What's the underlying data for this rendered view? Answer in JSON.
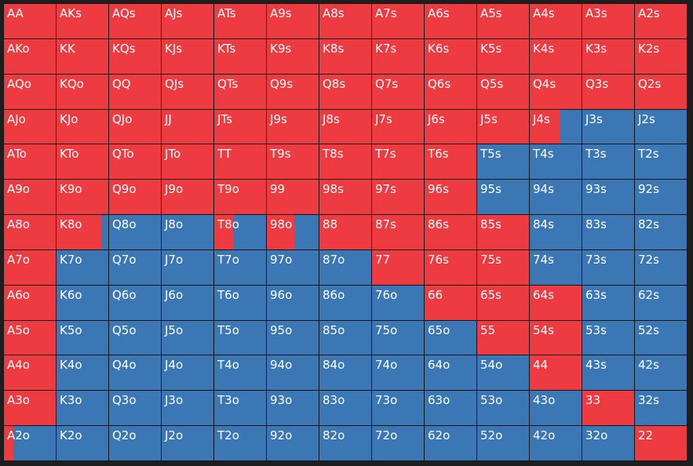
{
  "colors": {
    "raise": "#ee3b41",
    "fold": "#3a77b4",
    "border": "#141414"
  },
  "hands": [
    [
      "AA",
      "AKs",
      "AQs",
      "AJs",
      "ATs",
      "A9s",
      "A8s",
      "A7s",
      "A6s",
      "A5s",
      "A4s",
      "A3s",
      "A2s"
    ],
    [
      "AKo",
      "KK",
      "KQs",
      "KJs",
      "KTs",
      "K9s",
      "K8s",
      "K7s",
      "K6s",
      "K5s",
      "K4s",
      "K3s",
      "K2s"
    ],
    [
      "AQo",
      "KQo",
      "QQ",
      "QJs",
      "QTs",
      "Q9s",
      "Q8s",
      "Q7s",
      "Q6s",
      "Q5s",
      "Q4s",
      "Q3s",
      "Q2s"
    ],
    [
      "AJo",
      "KJo",
      "QJo",
      "JJ",
      "JTs",
      "J9s",
      "J8s",
      "J7s",
      "J6s",
      "J5s",
      "J4s",
      "J3s",
      "J2s"
    ],
    [
      "ATo",
      "KTo",
      "QTo",
      "JTo",
      "TT",
      "T9s",
      "T8s",
      "T7s",
      "T6s",
      "T5s",
      "T4s",
      "T3s",
      "T2s"
    ],
    [
      "A9o",
      "K9o",
      "Q9o",
      "J9o",
      "T9o",
      "99",
      "98s",
      "97s",
      "96s",
      "95s",
      "94s",
      "93s",
      "92s"
    ],
    [
      "A8o",
      "K8o",
      "Q8o",
      "J8o",
      "T8o",
      "98o",
      "88",
      "87s",
      "86s",
      "85s",
      "84s",
      "83s",
      "82s"
    ],
    [
      "A7o",
      "K7o",
      "Q7o",
      "J7o",
      "T7o",
      "97o",
      "87o",
      "77",
      "76s",
      "75s",
      "74s",
      "73s",
      "72s"
    ],
    [
      "A6o",
      "K6o",
      "Q6o",
      "J6o",
      "T6o",
      "96o",
      "86o",
      "76o",
      "66",
      "65s",
      "64s",
      "63s",
      "62s"
    ],
    [
      "A5o",
      "K5o",
      "Q5o",
      "J5o",
      "T5o",
      "95o",
      "85o",
      "75o",
      "65o",
      "55",
      "54s",
      "53s",
      "52s"
    ],
    [
      "A4o",
      "K4o",
      "Q4o",
      "J4o",
      "T4o",
      "94o",
      "84o",
      "74o",
      "64o",
      "54o",
      "44",
      "43s",
      "42s"
    ],
    [
      "A3o",
      "K3o",
      "Q3o",
      "J3o",
      "T3o",
      "93o",
      "83o",
      "73o",
      "63o",
      "53o",
      "43o",
      "33",
      "32s"
    ],
    [
      "A2o",
      "K2o",
      "Q2o",
      "J2o",
      "T2o",
      "92o",
      "82o",
      "72o",
      "62o",
      "52o",
      "42o",
      "32o",
      "22"
    ]
  ],
  "raise_freq": [
    [
      1,
      1,
      1,
      1,
      1,
      1,
      1,
      1,
      1,
      1,
      1,
      1,
      1
    ],
    [
      1,
      1,
      1,
      1,
      1,
      1,
      1,
      1,
      1,
      1,
      1,
      1,
      1
    ],
    [
      1,
      1,
      1,
      1,
      1,
      1,
      1,
      1,
      1,
      1,
      1,
      1,
      1
    ],
    [
      1,
      1,
      1,
      1,
      1,
      1,
      1,
      1,
      1,
      1,
      0.58,
      0,
      0
    ],
    [
      1,
      1,
      1,
      1,
      1,
      1,
      1,
      1,
      1,
      0,
      0,
      0,
      0
    ],
    [
      1,
      1,
      1,
      1,
      1,
      1,
      1,
      1,
      1,
      0,
      0,
      0,
      0
    ],
    [
      1,
      0.86,
      0,
      0,
      0.36,
      0.54,
      1,
      1,
      1,
      1,
      0,
      0,
      0
    ],
    [
      1,
      0,
      0,
      0,
      0,
      0,
      0,
      1,
      1,
      1,
      0,
      0,
      0
    ],
    [
      1,
      0,
      0,
      0,
      0,
      0,
      0,
      0,
      1,
      1,
      1,
      0,
      0
    ],
    [
      1,
      0,
      0,
      0,
      0,
      0,
      0,
      0,
      0,
      1,
      1,
      0,
      0
    ],
    [
      1,
      0,
      0,
      0,
      0,
      0,
      0,
      0,
      0,
      0,
      1,
      0,
      0
    ],
    [
      1,
      0,
      0,
      0,
      0,
      0,
      0,
      0,
      0,
      0,
      0,
      1,
      0
    ],
    [
      0.18,
      0,
      0,
      0,
      0,
      0,
      0,
      0,
      0,
      0,
      0,
      0,
      1
    ]
  ]
}
